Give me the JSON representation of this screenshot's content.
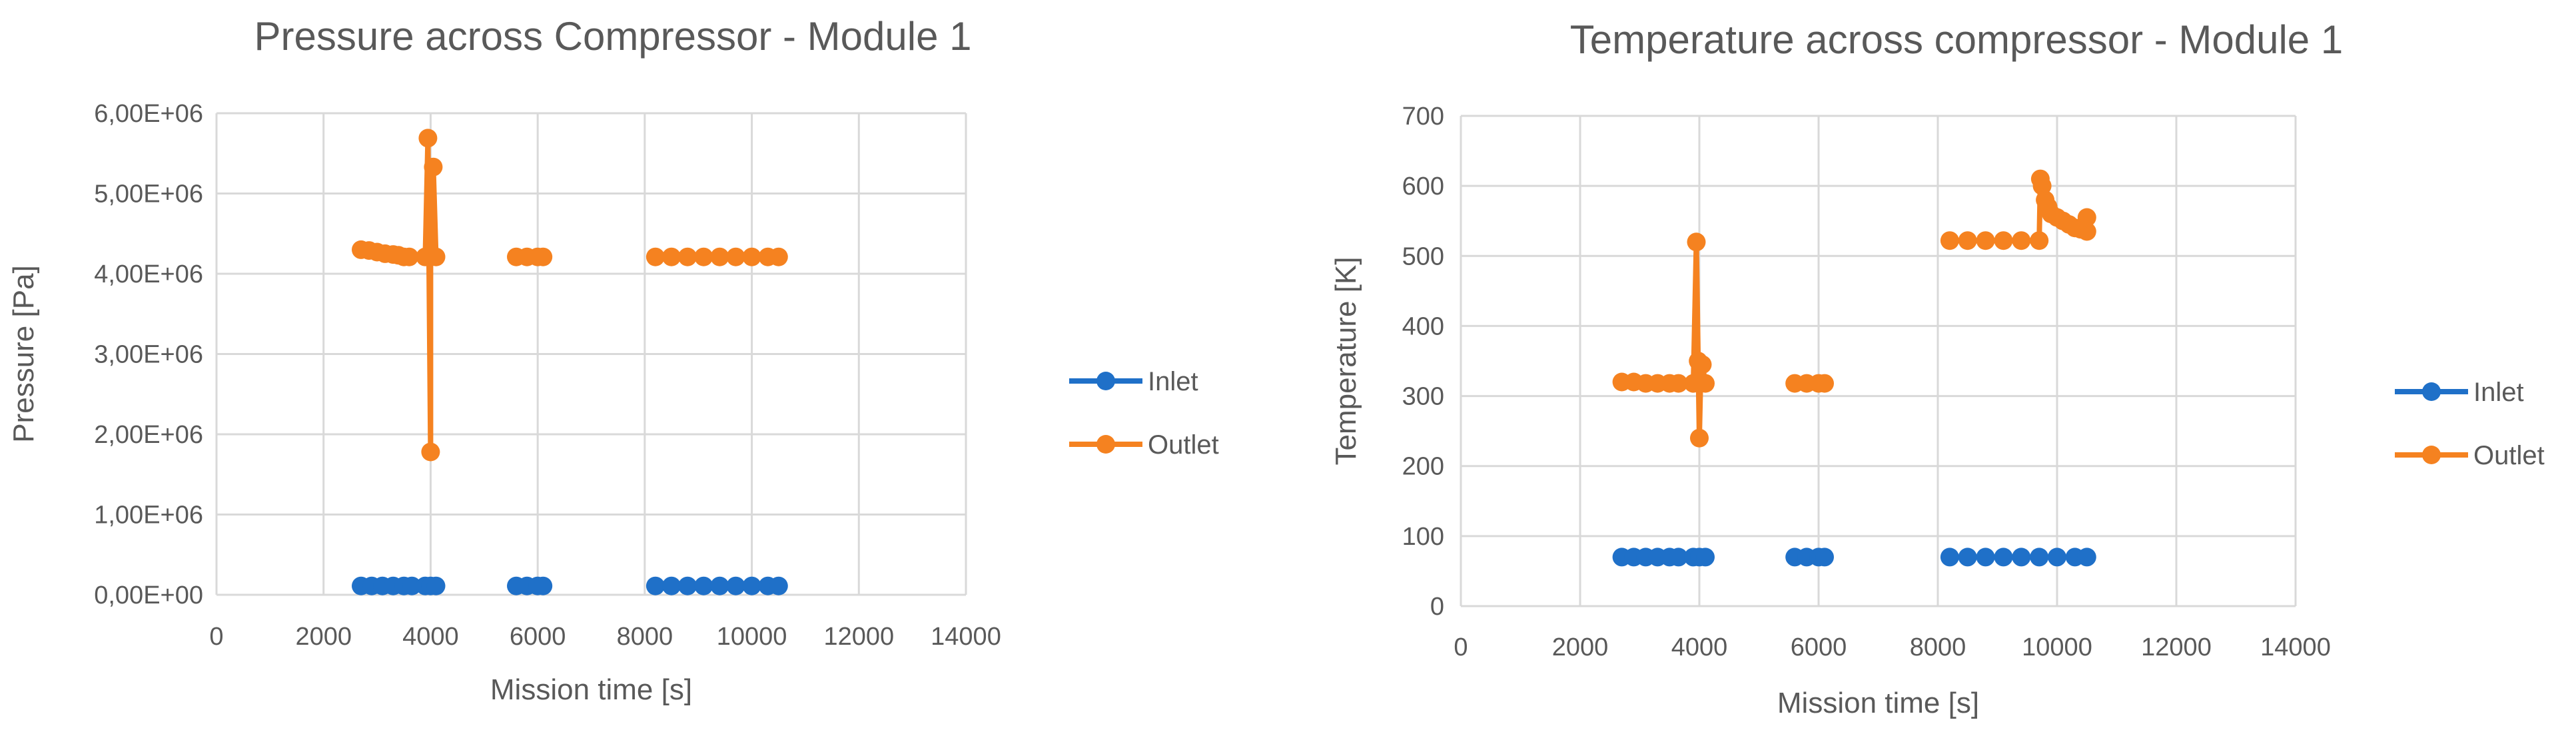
{
  "chart_data": [
    {
      "type": "line",
      "title": "Pressure across Compressor - Module 1",
      "xlabel": "Mission time [s]",
      "ylabel": "Pressure [Pa]",
      "xlim": [
        0,
        14000
      ],
      "ylim": [
        0,
        6000000
      ],
      "x_ticks": [
        "0",
        "2000",
        "4000",
        "6000",
        "8000",
        "10000",
        "12000",
        "14000"
      ],
      "y_ticks": [
        "0,00E+00",
        "1,00E+06",
        "2,00E+06",
        "3,00E+06",
        "4,00E+06",
        "5,00E+06",
        "6,00E+06"
      ],
      "grid": true,
      "legend": "right",
      "series": [
        {
          "name": "Inlet",
          "color": "#1f70c8",
          "segments": [
            [
              [
                2700,
                110000
              ],
              [
                2900,
                110000
              ],
              [
                3100,
                110000
              ],
              [
                3300,
                110000
              ],
              [
                3500,
                110000
              ],
              [
                3650,
                110000
              ]
            ],
            [
              [
                3900,
                110000
              ],
              [
                4000,
                110000
              ],
              [
                4100,
                110000
              ]
            ],
            [
              [
                5600,
                110000
              ],
              [
                5800,
                110000
              ],
              [
                6000,
                110000
              ],
              [
                6100,
                110000
              ]
            ],
            [
              [
                8200,
                110000
              ],
              [
                8500,
                110000
              ],
              [
                8800,
                110000
              ],
              [
                9100,
                110000
              ],
              [
                9400,
                110000
              ],
              [
                9700,
                110000
              ],
              [
                10000,
                110000
              ],
              [
                10300,
                110000
              ],
              [
                10500,
                110000
              ]
            ]
          ]
        },
        {
          "name": "Outlet",
          "color": "#f58220",
          "segments": [
            [
              [
                2700,
                4300000
              ],
              [
                2850,
                4290000
              ],
              [
                3000,
                4270000
              ],
              [
                3150,
                4250000
              ],
              [
                3300,
                4240000
              ],
              [
                3400,
                4230000
              ],
              [
                3500,
                4210000
              ],
              [
                3600,
                4210000
              ],
              [
                3900,
                4210000
              ],
              [
                3950,
                5690000
              ],
              [
                4000,
                1780000
              ],
              [
                4000,
                4210000
              ],
              [
                4050,
                5330000
              ],
              [
                4100,
                4210000
              ]
            ],
            [
              [
                5600,
                4210000
              ],
              [
                5800,
                4210000
              ],
              [
                6000,
                4210000
              ],
              [
                6100,
                4210000
              ]
            ],
            [
              [
                8200,
                4210000
              ],
              [
                8500,
                4210000
              ],
              [
                8800,
                4210000
              ],
              [
                9100,
                4210000
              ],
              [
                9400,
                4210000
              ],
              [
                9700,
                4210000
              ],
              [
                10000,
                4210000
              ],
              [
                10300,
                4210000
              ],
              [
                10500,
                4210000
              ]
            ]
          ]
        }
      ]
    },
    {
      "type": "line",
      "title": "Temperature across compressor - Module 1",
      "xlabel": "Mission time [s]",
      "ylabel": "Temperature [K]",
      "xlim": [
        0,
        14000
      ],
      "ylim": [
        0,
        700
      ],
      "x_ticks": [
        "0",
        "2000",
        "4000",
        "6000",
        "8000",
        "10000",
        "12000",
        "14000"
      ],
      "y_ticks": [
        "0",
        "100",
        "200",
        "300",
        "400",
        "500",
        "600",
        "700"
      ],
      "grid": true,
      "legend": "right",
      "series": [
        {
          "name": "Inlet",
          "color": "#1f70c8",
          "segments": [
            [
              [
                2700,
                70
              ],
              [
                2900,
                70
              ],
              [
                3100,
                70
              ],
              [
                3300,
                70
              ],
              [
                3500,
                70
              ],
              [
                3650,
                70
              ]
            ],
            [
              [
                3900,
                70
              ],
              [
                4000,
                70
              ],
              [
                4100,
                70
              ]
            ],
            [
              [
                5600,
                70
              ],
              [
                5800,
                70
              ],
              [
                6000,
                70
              ],
              [
                6100,
                70
              ]
            ],
            [
              [
                8200,
                70
              ],
              [
                8500,
                70
              ],
              [
                8800,
                70
              ],
              [
                9100,
                70
              ],
              [
                9400,
                70
              ],
              [
                9700,
                70
              ],
              [
                10000,
                70
              ],
              [
                10300,
                70
              ],
              [
                10500,
                70
              ]
            ]
          ]
        },
        {
          "name": "Outlet",
          "color": "#f58220",
          "segments": [
            [
              [
                2700,
                320
              ],
              [
                2900,
                320
              ],
              [
                3100,
                318
              ],
              [
                3300,
                318
              ],
              [
                3500,
                318
              ],
              [
                3650,
                318
              ],
              [
                3900,
                318
              ],
              [
                3950,
                520
              ],
              [
                3980,
                350
              ],
              [
                4000,
                240
              ],
              [
                4020,
                320
              ],
              [
                4050,
                345
              ],
              [
                4100,
                318
              ]
            ],
            [
              [
                5600,
                318
              ],
              [
                5800,
                318
              ],
              [
                6000,
                318
              ],
              [
                6100,
                318
              ]
            ],
            [
              [
                8200,
                522
              ],
              [
                8500,
                522
              ],
              [
                8800,
                522
              ],
              [
                9100,
                522
              ],
              [
                9400,
                522
              ],
              [
                9700,
                522
              ],
              [
                9720,
                610
              ],
              [
                9750,
                600
              ],
              [
                9800,
                580
              ],
              [
                9850,
                570
              ],
              [
                9900,
                560
              ],
              [
                10000,
                555
              ],
              [
                10100,
                550
              ],
              [
                10200,
                545
              ],
              [
                10300,
                540
              ],
              [
                10400,
                538
              ],
              [
                10500,
                535
              ],
              [
                10500,
                555
              ]
            ]
          ]
        }
      ]
    }
  ]
}
